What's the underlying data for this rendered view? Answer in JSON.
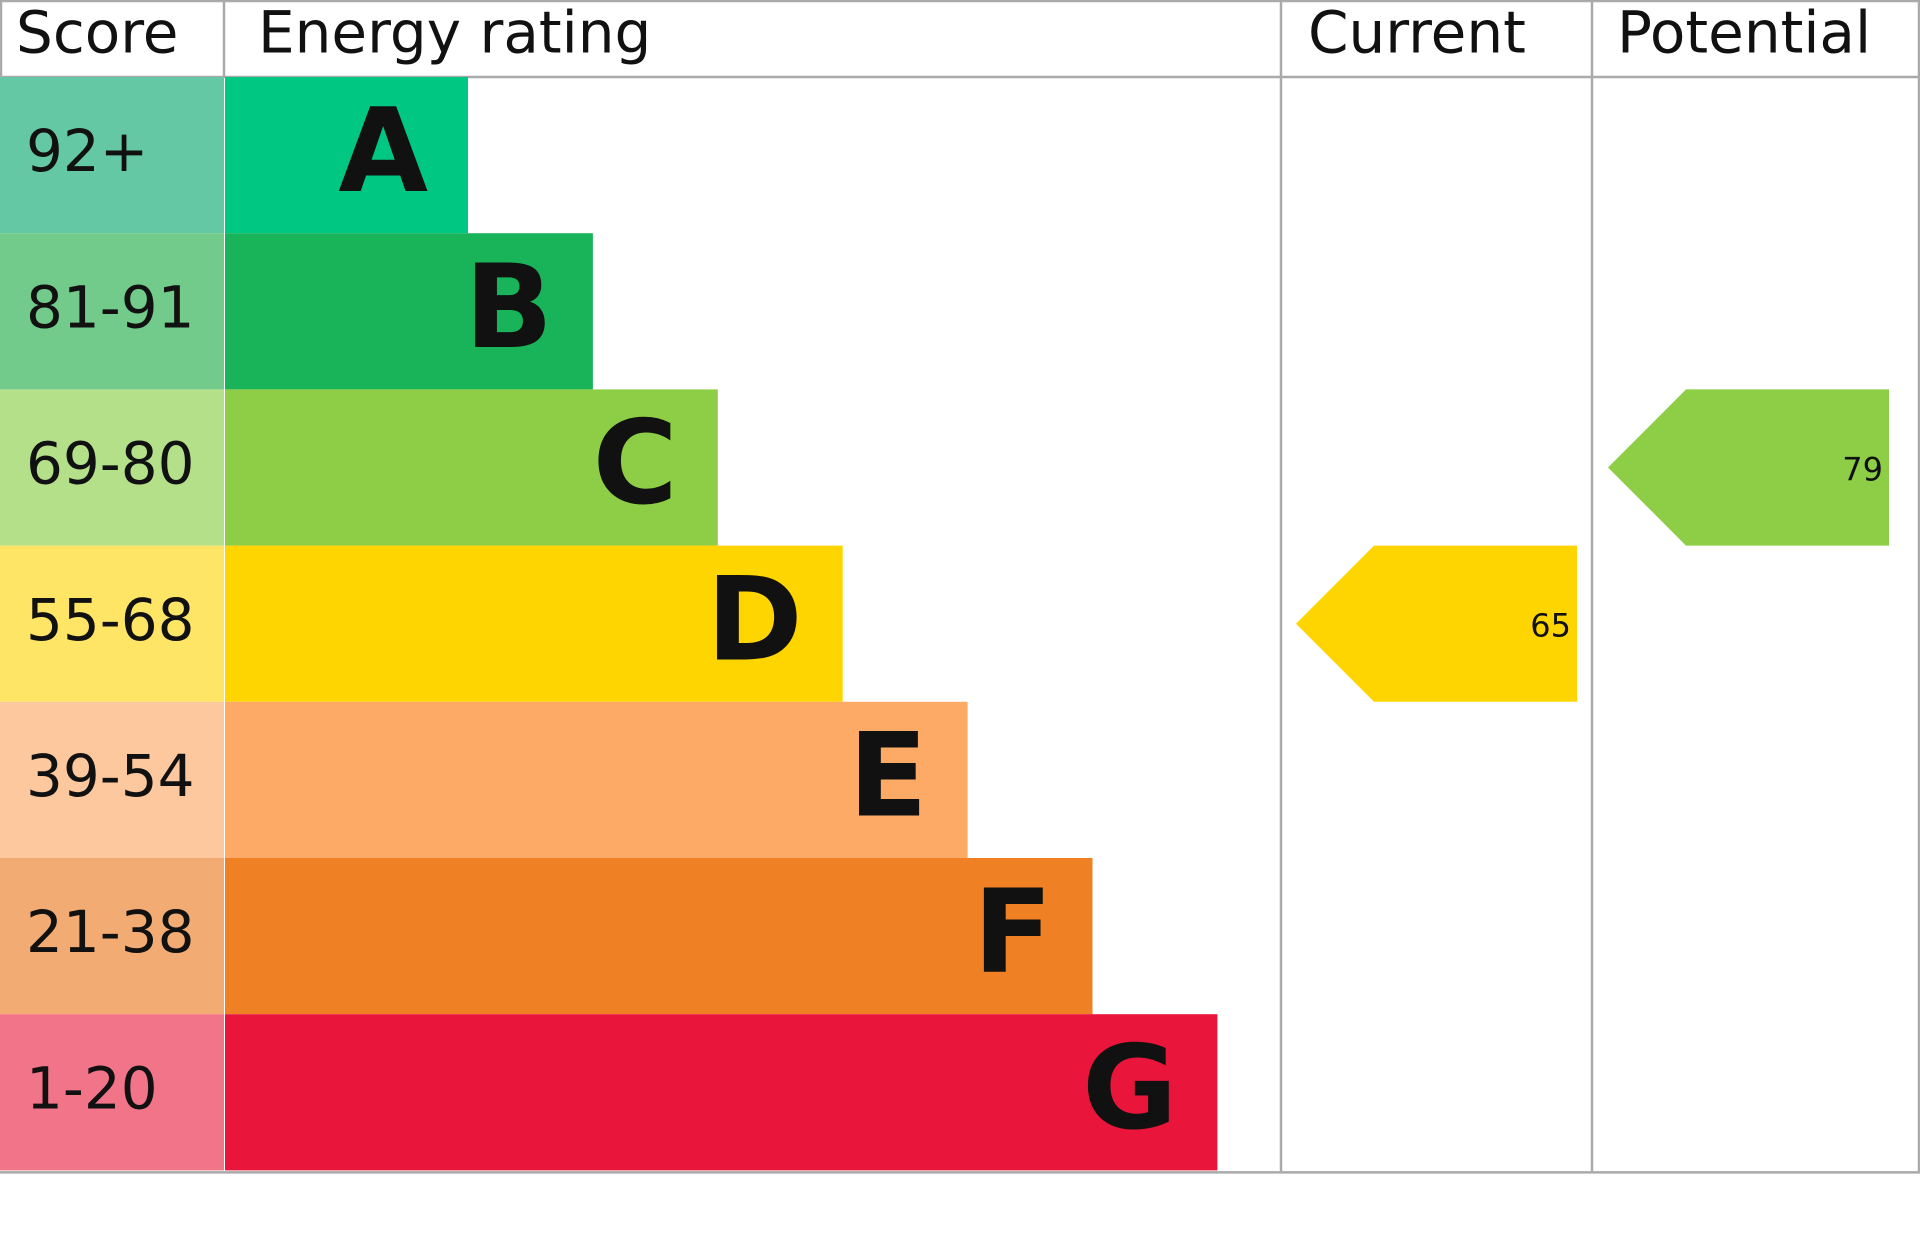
{
  "chart_data": {
    "type": "epc",
    "headers": [
      "Score",
      "Energy rating",
      "Current",
      "Potential"
    ],
    "bands": [
      {
        "score": "92+",
        "rating": "A",
        "color": "#00c781",
        "score_color": "#64c8a5"
      },
      {
        "score": "81-91",
        "rating": "B",
        "color": "#19b459",
        "score_color": "#72cb8b"
      },
      {
        "score": "69-80",
        "rating": "C",
        "color": "#8dce46",
        "score_color": "#b4e08a"
      },
      {
        "score": "55-68",
        "rating": "D",
        "color": "#ffd500",
        "score_color": "#ffe566"
      },
      {
        "score": "39-54",
        "rating": "E",
        "color": "#fcaa65",
        "score_color": "#fec89f"
      },
      {
        "score": "21-38",
        "rating": "F",
        "color": "#ef8023",
        "score_color": "#f3ab74"
      },
      {
        "score": "1-20",
        "rating": "G",
        "color": "#e9153b",
        "score_color": "#f27489"
      }
    ],
    "current": 65,
    "potential": 79
  }
}
